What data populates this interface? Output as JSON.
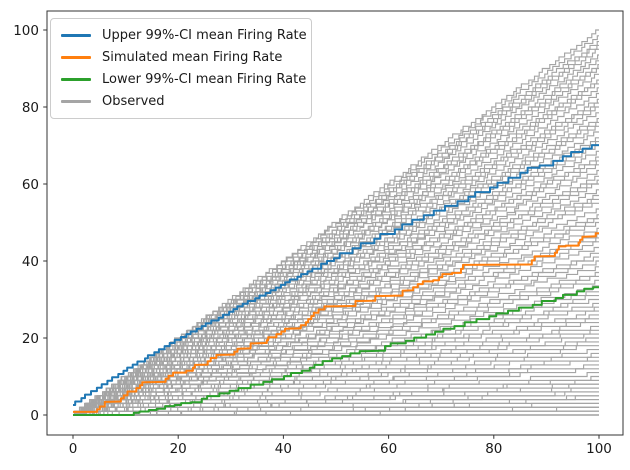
{
  "chart_data": {
    "type": "line",
    "title": "",
    "xlabel": "",
    "ylabel": "",
    "xlim": [
      -5,
      105
    ],
    "ylim": [
      -5,
      105
    ],
    "x_ticks": [
      0,
      20,
      40,
      60,
      80,
      100
    ],
    "y_ticks": [
      0,
      20,
      40,
      60,
      80,
      100
    ],
    "grid": false,
    "legend_position": "upper left",
    "series": [
      {
        "name": "Upper 99%-CI mean Firing Rate",
        "color": "#1f77b4",
        "type": "step-line",
        "points": [
          [
            0,
            2.6
          ],
          [
            2,
            4.4
          ],
          [
            4,
            6.2
          ],
          [
            6,
            8
          ],
          [
            8,
            9.8
          ],
          [
            10,
            11.5
          ],
          [
            12,
            13.1
          ],
          [
            14,
            14.7
          ],
          [
            16,
            16.3
          ],
          [
            18,
            17.9
          ],
          [
            20,
            19.5
          ],
          [
            22,
            21
          ],
          [
            24,
            22.4
          ],
          [
            26,
            23.8
          ],
          [
            28,
            25.3
          ],
          [
            30,
            26.8
          ],
          [
            32,
            28.2
          ],
          [
            34,
            29.6
          ],
          [
            36,
            31
          ],
          [
            38,
            32.4
          ],
          [
            40,
            33.8
          ],
          [
            42,
            35.2
          ],
          [
            44,
            36.6
          ],
          [
            46,
            38
          ],
          [
            48,
            39.3
          ],
          [
            50,
            40.7
          ],
          [
            52,
            42
          ],
          [
            54,
            43.3
          ],
          [
            56,
            44.6
          ],
          [
            58,
            45.8
          ],
          [
            60,
            47
          ],
          [
            62,
            48.2
          ],
          [
            64,
            49.5
          ],
          [
            66,
            50.7
          ],
          [
            68,
            51.9
          ],
          [
            70,
            53.1
          ],
          [
            72,
            54.3
          ],
          [
            74,
            55.5
          ],
          [
            76,
            56.7
          ],
          [
            78,
            57.9
          ],
          [
            80,
            59.1
          ],
          [
            82,
            60.3
          ],
          [
            84,
            61.6
          ],
          [
            86,
            62.9
          ],
          [
            88,
            64.2
          ],
          [
            90,
            64.8
          ],
          [
            92,
            66
          ],
          [
            94,
            67.2
          ],
          [
            96,
            68.3
          ],
          [
            98,
            69.2
          ],
          [
            100,
            70.1
          ]
        ]
      },
      {
        "name": "Simulated mean Firing Rate",
        "color": "#ff7f0e",
        "type": "step-line",
        "points": [
          [
            0,
            0.8
          ],
          [
            4.5,
            0.8
          ],
          [
            5.5,
            2.2
          ],
          [
            6.5,
            3.4
          ],
          [
            9,
            3.5
          ],
          [
            10,
            5.1
          ],
          [
            11.5,
            6.1
          ],
          [
            12.5,
            7
          ],
          [
            13.5,
            8.5
          ],
          [
            17.5,
            8.6
          ],
          [
            18.5,
            10.2
          ],
          [
            19.5,
            11
          ],
          [
            22.5,
            11.5
          ],
          [
            23.5,
            13
          ],
          [
            25.5,
            13.1
          ],
          [
            26.5,
            14.8
          ],
          [
            28,
            15.6
          ],
          [
            30.5,
            15.7
          ],
          [
            31.5,
            17.2
          ],
          [
            33.5,
            17.3
          ],
          [
            34.5,
            18.6
          ],
          [
            36.5,
            18.7
          ],
          [
            37.5,
            20.2
          ],
          [
            39.5,
            21
          ],
          [
            40.5,
            22.4
          ],
          [
            43,
            22.5
          ],
          [
            44.5,
            24.1
          ],
          [
            45.5,
            25.7
          ],
          [
            47,
            27.4
          ],
          [
            48.5,
            28.2
          ],
          [
            53.5,
            28.3
          ],
          [
            54.5,
            29.6
          ],
          [
            57,
            29.7
          ],
          [
            58,
            30.9
          ],
          [
            62,
            31
          ],
          [
            63,
            32.3
          ],
          [
            64.5,
            32.4
          ],
          [
            66,
            34
          ],
          [
            67.5,
            34.7
          ],
          [
            69.5,
            35
          ],
          [
            70.5,
            36.6
          ],
          [
            73.5,
            36.9
          ],
          [
            74.5,
            39
          ],
          [
            87,
            39.1
          ],
          [
            88,
            41.2
          ],
          [
            91.5,
            41.3
          ],
          [
            92.5,
            43.8
          ],
          [
            96,
            44
          ],
          [
            97,
            46.3
          ],
          [
            99,
            46.4
          ],
          [
            100,
            47.2
          ]
        ]
      },
      {
        "name": "Lower 99%-CI mean Firing Rate",
        "color": "#2ca02c",
        "type": "step-line",
        "points": [
          [
            0,
            0
          ],
          [
            11,
            0
          ],
          [
            12,
            0.6
          ],
          [
            14,
            0.9
          ],
          [
            15,
            1.3
          ],
          [
            17,
            1.6
          ],
          [
            18,
            2.3
          ],
          [
            20,
            2.6
          ],
          [
            21,
            3.1
          ],
          [
            24,
            3.3
          ],
          [
            25,
            4.2
          ],
          [
            27,
            4.9
          ],
          [
            29,
            5.6
          ],
          [
            31,
            6.3
          ],
          [
            33,
            7
          ],
          [
            35,
            7.9
          ],
          [
            37,
            8.6
          ],
          [
            39,
            9.3
          ],
          [
            41,
            10.1
          ],
          [
            43,
            10.9
          ],
          [
            44.5,
            11.5
          ],
          [
            46.5,
            13
          ],
          [
            48,
            14
          ],
          [
            50,
            14.7
          ],
          [
            52,
            15.3
          ],
          [
            54,
            16
          ],
          [
            56,
            16.6
          ],
          [
            58.5,
            16.7
          ],
          [
            60,
            17.9
          ],
          [
            62,
            18.6
          ],
          [
            64,
            19.3
          ],
          [
            66,
            20.1
          ],
          [
            68,
            20.9
          ],
          [
            70,
            21.6
          ],
          [
            72,
            22.4
          ],
          [
            74,
            23.1
          ],
          [
            76,
            24.1
          ],
          [
            78,
            24.9
          ],
          [
            80,
            25.6
          ],
          [
            82,
            26.4
          ],
          [
            84,
            27.1
          ],
          [
            86,
            27.9
          ],
          [
            88.5,
            28.6
          ],
          [
            90.5,
            29.6
          ],
          [
            92.5,
            30.4
          ],
          [
            94.5,
            31.2
          ],
          [
            96.5,
            32.1
          ],
          [
            98.5,
            32.8
          ],
          [
            100,
            33.2
          ]
        ]
      },
      {
        "name": "Observed",
        "color": "#a5a5a5",
        "type": "step-ensemble",
        "description": "one cumulative spike-count step line per observed trial, each rising from (0,0) to (100, final_count)",
        "final_counts": [
          100,
          98.5,
          97,
          96,
          95,
          93.5,
          92,
          91,
          90,
          88.5,
          87,
          86,
          85,
          83.5,
          82,
          81,
          80,
          78.5,
          77,
          76,
          75,
          73.5,
          72,
          71,
          70,
          68.5,
          67,
          66,
          65,
          63.5,
          62,
          61,
          60,
          58.5,
          57,
          56,
          55,
          53.5,
          52,
          51,
          50,
          48.5,
          47,
          46,
          45,
          43.5,
          42,
          41,
          40,
          38.5,
          37,
          36,
          35,
          33.5,
          32,
          31,
          30,
          29,
          28,
          27,
          26,
          25,
          24,
          23,
          22,
          21,
          20,
          19,
          18,
          17,
          16,
          15,
          14,
          13,
          12,
          11,
          10,
          9,
          9,
          8,
          8,
          7,
          7,
          6,
          6,
          5,
          5,
          4,
          4,
          3,
          3,
          3,
          2,
          2,
          2,
          2,
          1,
          1,
          1,
          1,
          1,
          0,
          0,
          0
        ]
      }
    ]
  }
}
